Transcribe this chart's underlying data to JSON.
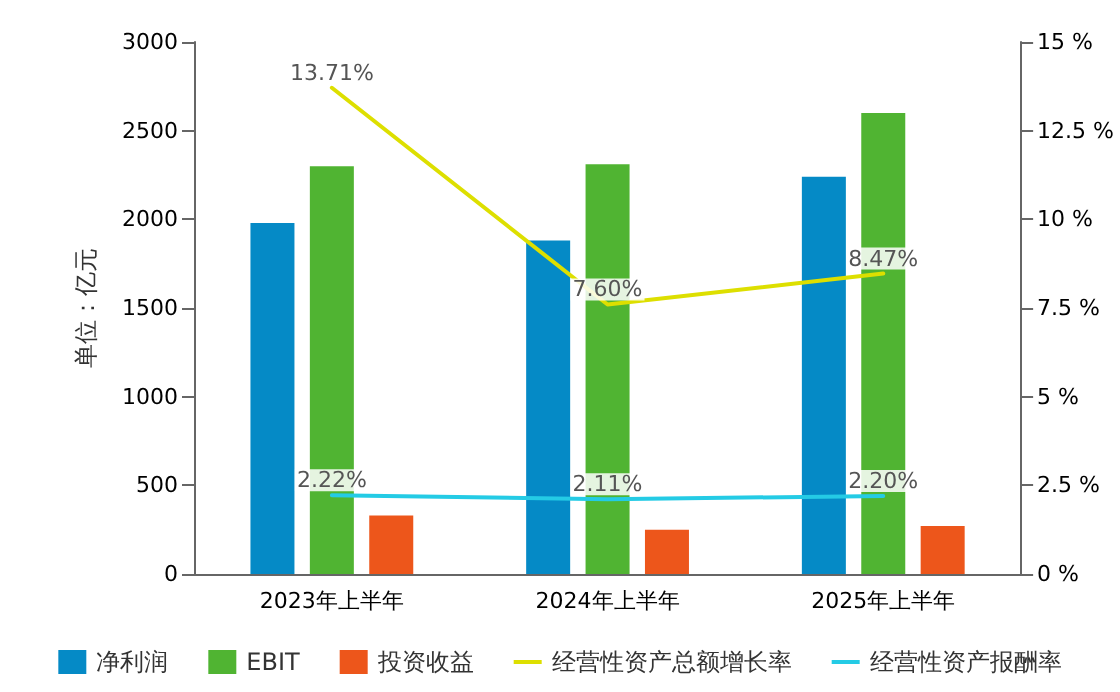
{
  "chart_data": {
    "type": "bar",
    "ylabel": "单位：亿元",
    "categories": [
      "2023年上半年",
      "2024年上半年",
      "2025年上半年"
    ],
    "series": [
      {
        "name": "净利润",
        "color": "#058ac6",
        "values": [
          1980,
          1880,
          2240
        ]
      },
      {
        "name": "EBIT",
        "color": "#50b432",
        "values": [
          2300,
          2310,
          2600
        ]
      },
      {
        "name": "投资收益",
        "color": "#ed561b",
        "values": [
          330,
          250,
          270
        ]
      },
      {
        "name": "经营性资产总额增长率",
        "type": "line",
        "axis": "y2",
        "color": "#dddf00",
        "values": [
          13.71,
          7.6,
          8.47
        ],
        "value_labels": [
          "13.71%",
          "7.60%",
          "8.47%"
        ]
      },
      {
        "name": "经营性资产报酬率",
        "type": "line",
        "axis": "y2",
        "color": "#24cbe5",
        "values": [
          2.22,
          2.11,
          2.2
        ],
        "value_labels": [
          "2.22%",
          "2.11%",
          "2.20%"
        ]
      }
    ],
    "ylim": [
      0,
      3000
    ],
    "yticks": [
      0,
      500,
      1000,
      1500,
      2000,
      2500,
      3000
    ],
    "y2lim": [
      0,
      15
    ],
    "y2ticks": [
      {
        "value": 0,
        "label": "0 %"
      },
      {
        "value": 2.5,
        "label": "2.5 %"
      },
      {
        "value": 5,
        "label": "5 %"
      },
      {
        "value": 7.5,
        "label": "7.5 %"
      },
      {
        "value": 10,
        "label": "10 %"
      },
      {
        "value": 12.5,
        "label": "12.5 %"
      },
      {
        "value": 15,
        "label": "15 %"
      }
    ],
    "grid": false,
    "legend": "bottom",
    "marker": "none",
    "line_style": "solid"
  }
}
